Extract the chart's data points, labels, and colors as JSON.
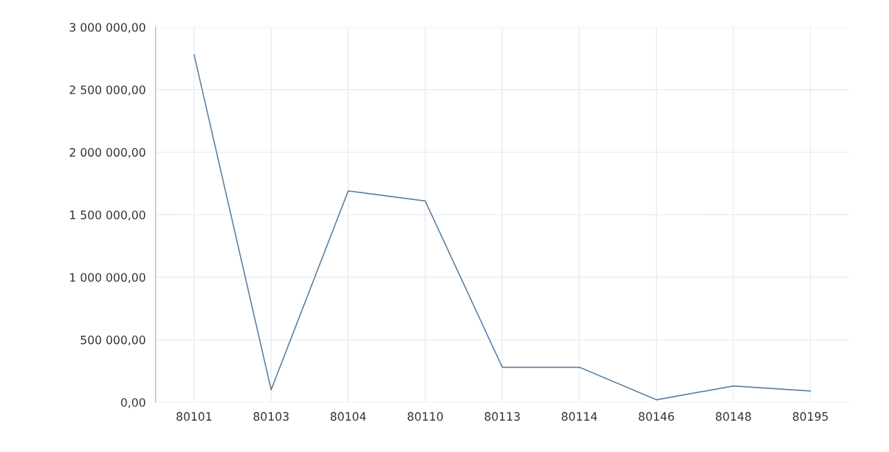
{
  "chart_data": {
    "type": "line",
    "categories": [
      "80101",
      "80103",
      "80104",
      "80110",
      "80113",
      "80114",
      "80146",
      "80148",
      "80195"
    ],
    "series": [
      {
        "color": "#5a7fa0",
        "values": [
          2780000,
          100000,
          1690000,
          1610000,
          280000,
          280000,
          20000,
          130000,
          90000
        ]
      }
    ],
    "ylim": [
      0,
      3000000
    ],
    "yticks": [
      {
        "value": 0,
        "label": "0,00"
      },
      {
        "value": 500000,
        "label": "500 000,00"
      },
      {
        "value": 1000000,
        "label": "1 000 000,00"
      },
      {
        "value": 1500000,
        "label": "1 500 000,00"
      },
      {
        "value": 2000000,
        "label": "2 000 000,00"
      },
      {
        "value": 2500000,
        "label": "2 500 000,00"
      },
      {
        "value": 3000000,
        "label": "3 000 000,00"
      }
    ],
    "grid": true,
    "marker": "none",
    "line_style": "solid"
  }
}
